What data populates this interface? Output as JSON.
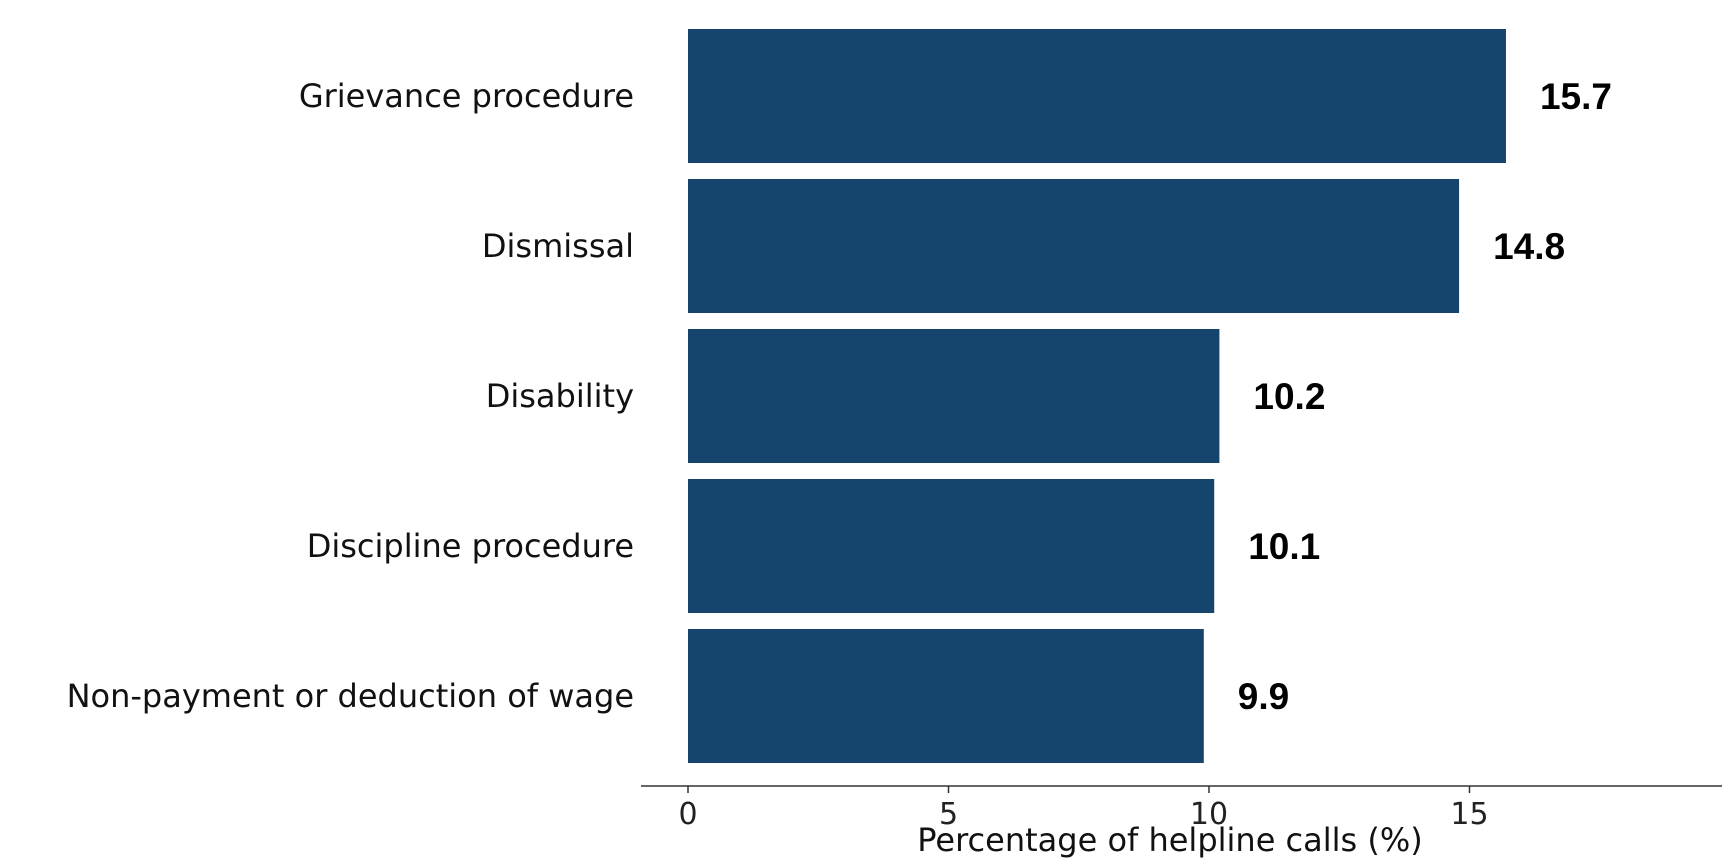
{
  "chart_data": {
    "type": "bar",
    "orientation": "horizontal",
    "categories": [
      "Grievance procedure",
      "Dismissal",
      "Disability",
      "Discipline procedure",
      "Non-payment or deduction of wage"
    ],
    "values": [
      15.7,
      14.8,
      10.2,
      10.1,
      9.9
    ],
    "value_labels": [
      "15.7",
      "14.8",
      "10.2",
      "10.1",
      "9.9"
    ],
    "xlabel": "Percentage of helpline calls (%)",
    "ylabel": "",
    "xlim": [
      -0.95,
      19.8
    ],
    "xticks": [
      0,
      5,
      10,
      15
    ],
    "xtick_labels": [
      "0",
      "5",
      "10",
      "15"
    ],
    "grid": false,
    "bar_color": "#15446c"
  }
}
